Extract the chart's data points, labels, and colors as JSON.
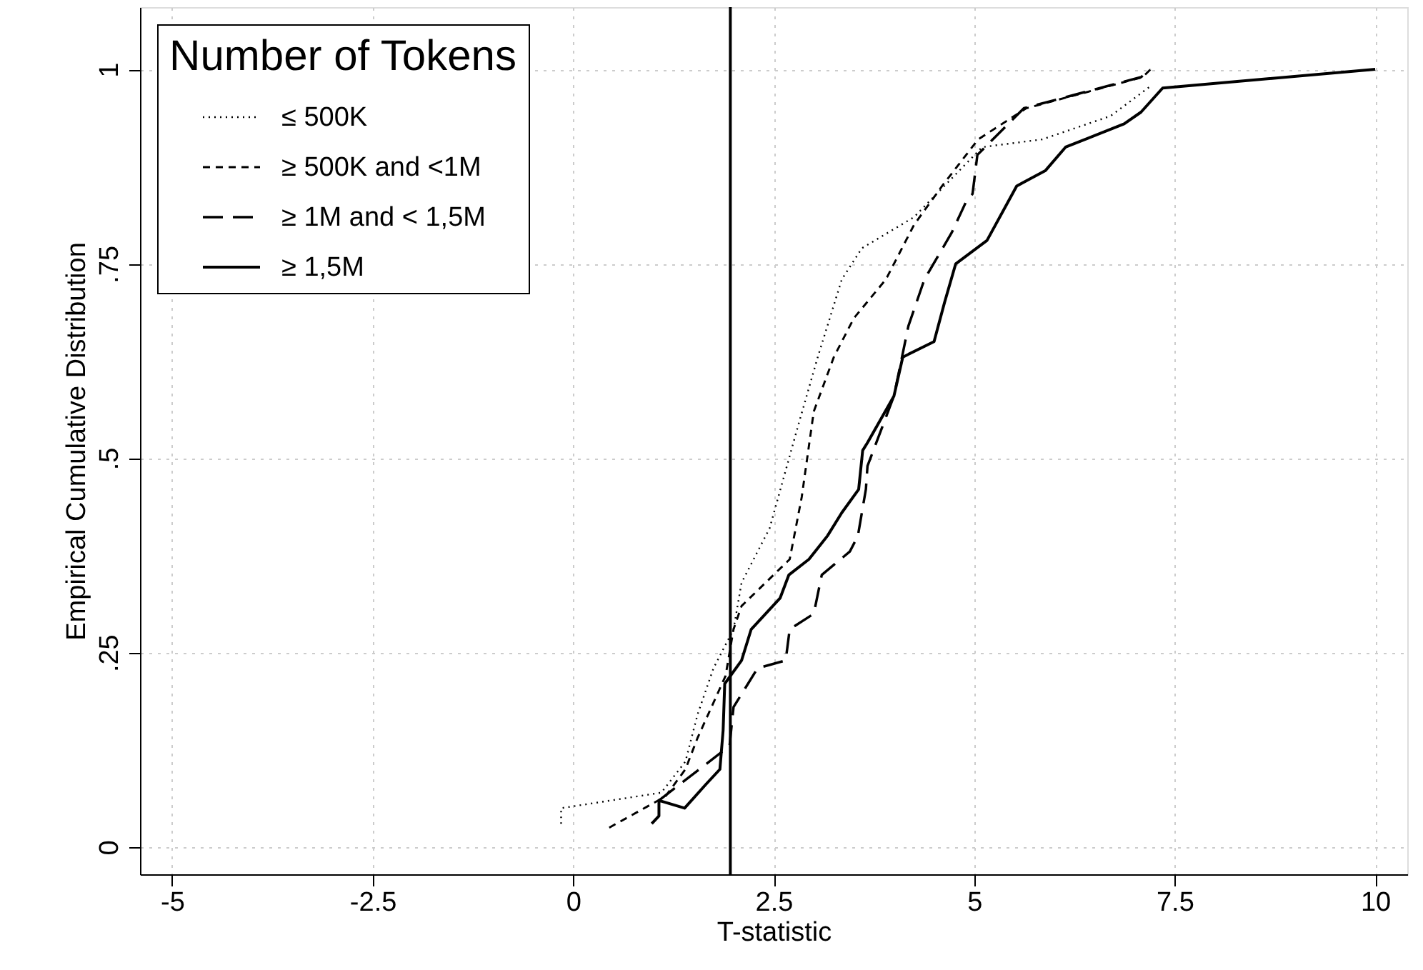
{
  "chart_data": {
    "type": "line",
    "xlabel": "T-statistic",
    "ylabel": "Empirical Cumulative Distribution",
    "legend_title": "Number of Tokens",
    "legend": "top left",
    "grid": true,
    "xlim": [
      -5.4,
      10.4
    ],
    "ylim": [
      -0.035,
      1.08
    ],
    "xticks": [
      -5,
      -2.5,
      0,
      2.5,
      5,
      7.5,
      10
    ],
    "yticks": [
      0,
      {
        "value": 0.25,
        "label": ".25"
      },
      {
        "value": 0.5,
        "label": ".5"
      },
      {
        "value": 0.75,
        "label": ".75"
      },
      1
    ],
    "ref_lines": [
      {
        "axis": "x",
        "value": 1.96,
        "color": "#000000"
      }
    ],
    "series": [
      {
        "name": "≤ 500K",
        "color": "#000000",
        "line_style": "dotted",
        "x": [
          -0.15,
          -0.15,
          1.1,
          1.4,
          1.55,
          1.75,
          2.0,
          2.1,
          2.45,
          2.8,
          3.05,
          3.35,
          3.6,
          4.25,
          5.1,
          5.85,
          6.7,
          7.22
        ],
        "values": [
          0.03,
          0.05,
          0.07,
          0.11,
          0.17,
          0.23,
          0.28,
          0.34,
          0.41,
          0.54,
          0.63,
          0.73,
          0.77,
          0.81,
          0.9,
          0.91,
          0.94,
          0.98
        ]
      },
      {
        "name": "≥ 500K and <1M",
        "color": "#000000",
        "line_style": "dashed",
        "x": [
          0.45,
          1.15,
          1.4,
          1.55,
          1.9,
          2.0,
          2.1,
          2.7,
          2.85,
          3.0,
          3.25,
          3.5,
          3.9,
          4.25,
          4.6,
          5.05,
          5.65,
          7.1,
          7.2
        ],
        "values": [
          0.025,
          0.065,
          0.1,
          0.14,
          0.22,
          0.28,
          0.31,
          0.37,
          0.45,
          0.56,
          0.63,
          0.68,
          0.73,
          0.8,
          0.85,
          0.91,
          0.95,
          0.99,
          1.0
        ]
      },
      {
        "name": "≥ 1M and < 1,5M",
        "color": "#000000",
        "line_style": "longdash",
        "x": [
          1.07,
          1.95,
          2.0,
          2.3,
          2.65,
          2.7,
          3.0,
          3.1,
          3.45,
          3.55,
          3.65,
          3.67,
          4.0,
          4.18,
          4.38,
          4.72,
          4.9,
          4.98,
          5.04,
          5.62,
          7.08,
          7.2
        ],
        "values": [
          0.06,
          0.13,
          0.18,
          0.23,
          0.24,
          0.28,
          0.3,
          0.35,
          0.38,
          0.4,
          0.46,
          0.49,
          0.58,
          0.67,
          0.73,
          0.79,
          0.83,
          0.84,
          0.89,
          0.95,
          0.99,
          1.0
        ]
      },
      {
        "name": "≥ 1,5M",
        "color": "#000000",
        "line_style": "solid",
        "x": [
          0.98,
          1.07,
          1.07,
          1.39,
          1.65,
          1.83,
          1.87,
          1.89,
          2.1,
          2.22,
          2.58,
          2.69,
          2.94,
          3.17,
          3.35,
          3.56,
          3.61,
          3.67,
          4.0,
          4.11,
          4.5,
          4.63,
          4.77,
          5.16,
          5.53,
          5.89,
          6.14,
          6.87,
          7.08,
          7.35,
          10.0
        ],
        "values": [
          0.03,
          0.04,
          0.06,
          0.05,
          0.08,
          0.1,
          0.15,
          0.21,
          0.24,
          0.28,
          0.32,
          0.35,
          0.37,
          0.4,
          0.43,
          0.46,
          0.51,
          0.52,
          0.58,
          0.63,
          0.65,
          0.7,
          0.75,
          0.78,
          0.85,
          0.87,
          0.9,
          0.93,
          0.945,
          0.976,
          1.0
        ]
      }
    ]
  }
}
